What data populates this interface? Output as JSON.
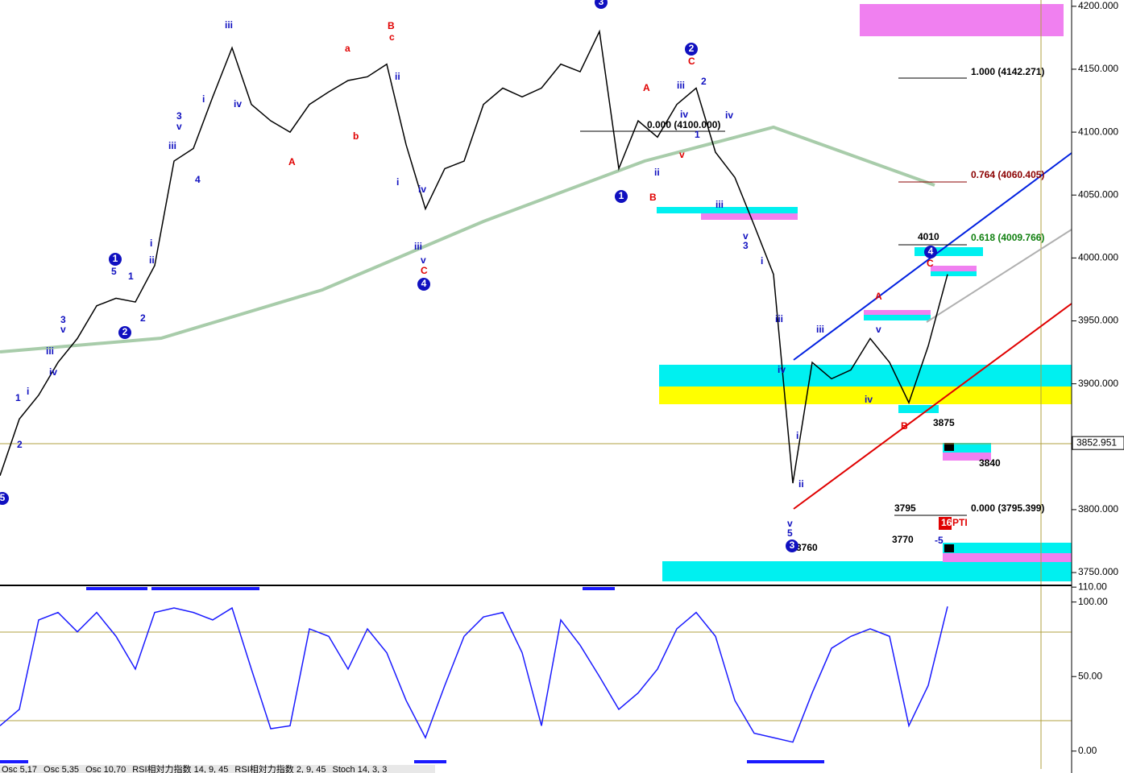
{
  "chart_data": [
    {
      "type": "line",
      "series": [
        {
          "color": "#000000",
          "values": [
            3827,
            3872,
            3891,
            3917,
            3936,
            3962,
            3968,
            3965,
            3994,
            4077,
            4087,
            4128,
            4167,
            4122,
            4109,
            4100,
            4122,
            4132,
            4141,
            4144,
            4154,
            4090,
            4039,
            4071,
            4077,
            4122,
            4135,
            4128,
            4135,
            4154,
            4148,
            4180,
            4071,
            4109,
            4096,
            4122,
            4135,
            4084,
            4064,
            4026,
            3987,
            3821,
            3917,
            3904,
            3911,
            3936,
            3917,
            3885,
            3930,
            3987
          ]
        }
      ],
      "ylim": [
        3743,
        4205
      ],
      "yticks": [
        {
          "value": 4200,
          "label": "4200.000"
        },
        {
          "value": 4150,
          "label": "4150.000"
        },
        {
          "value": 4100,
          "label": "4100.000"
        },
        {
          "value": 4050,
          "label": "4050.000"
        },
        {
          "value": 4000,
          "label": "4000.000"
        },
        {
          "value": 3950,
          "label": "3950.000"
        },
        {
          "value": 3900,
          "label": "3900.000"
        },
        {
          "value": 3850,
          "label": "3850.000"
        },
        {
          "value": 3800,
          "label": "3800.000"
        },
        {
          "value": 3750,
          "label": "3750.000"
        }
      ],
      "last_price": {
        "value": 3852.951,
        "label": "3852.951"
      },
      "annotations": [
        "1.000 (4142.271)",
        "0.764 (4060.405)",
        "0.618 (4009.766)",
        "0.000 (3795.399)",
        "0.000 (4100.000)",
        "4010",
        "3875",
        "3840",
        "3795",
        "3770",
        "3760",
        "-5",
        "PTI",
        "16",
        "iii",
        "i",
        "3",
        "v",
        "iii",
        "4",
        "5",
        "1",
        "2",
        "3",
        "v",
        "iii",
        "iv",
        "2",
        "1",
        "i",
        "ii",
        "i",
        "ii",
        "i",
        "iv",
        "iii",
        "iv",
        "v",
        "iii",
        "2",
        "iv",
        "1",
        "iv",
        "ii",
        "iii",
        "v",
        "3",
        "i",
        "iii",
        "iv",
        "i",
        "ii",
        "v",
        "5",
        "iii",
        "iv",
        "v",
        "A",
        "a",
        "b",
        "B",
        "c",
        "A",
        "B",
        "C",
        "C",
        "A",
        "B",
        "C",
        "v",
        "1",
        "2",
        "4",
        "1",
        "2",
        "3",
        "4",
        "5",
        "3"
      ]
    },
    {
      "type": "line",
      "series": [
        {
          "color": "#1a1aff",
          "values": [
            17,
            28,
            88,
            93,
            80,
            93,
            77,
            55,
            93,
            96,
            93,
            88,
            96,
            55,
            15,
            17,
            82,
            77,
            55,
            82,
            66,
            34,
            9,
            44,
            77,
            90,
            93,
            66,
            17,
            88,
            71,
            50,
            28,
            39,
            55,
            82,
            93,
            77,
            34,
            12,
            9,
            6,
            39,
            69,
            77,
            82,
            77,
            17,
            44,
            97
          ]
        }
      ],
      "ylim": [
        -12,
        109
      ],
      "yticks": [
        {
          "value": 110,
          "label": "110.00"
        },
        {
          "value": 100,
          "label": "100.00"
        },
        {
          "value": 50,
          "label": "50.00"
        },
        {
          "value": 0,
          "label": "0.00"
        }
      ],
      "tabs": [
        "Osc 5,17",
        "Osc 5,35",
        "Osc 10,70",
        "RSI相対力指数 14, 9, 45",
        "RSI相対力指数 2, 9, 45",
        "Stoch 14, 3, 3"
      ]
    }
  ]
}
